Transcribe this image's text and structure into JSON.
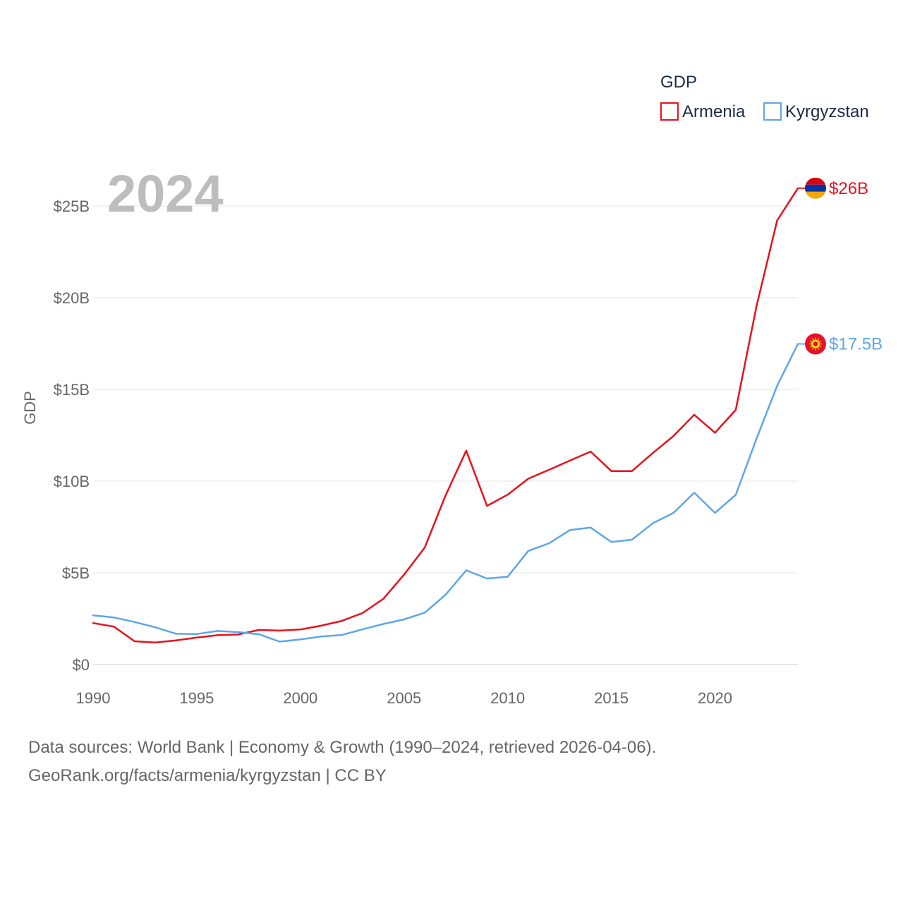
{
  "chart_data": {
    "type": "line",
    "year_label": "2024",
    "ylabel": "GDP",
    "xlim": [
      1990,
      2024
    ],
    "ylim": [
      0,
      27
    ],
    "x_ticks": [
      1990,
      1995,
      2000,
      2005,
      2010,
      2015,
      2020
    ],
    "y_ticks": [
      {
        "value": 0,
        "label": "$0"
      },
      {
        "value": 5,
        "label": "$5B"
      },
      {
        "value": 10,
        "label": "$10B"
      },
      {
        "value": 15,
        "label": "$15B"
      },
      {
        "value": 20,
        "label": "$20B"
      },
      {
        "value": 25,
        "label": "$25B"
      }
    ],
    "legend": {
      "title": "GDP",
      "placement": "top-right"
    },
    "x": [
      1990,
      1991,
      1992,
      1993,
      1994,
      1995,
      1996,
      1997,
      1998,
      1999,
      2000,
      2001,
      2002,
      2003,
      2004,
      2005,
      2006,
      2007,
      2008,
      2009,
      2010,
      2011,
      2012,
      2013,
      2014,
      2015,
      2016,
      2017,
      2018,
      2019,
      2020,
      2021,
      2022,
      2023,
      2024
    ],
    "series": [
      {
        "name": "Armenia",
        "color": "#e8111c",
        "end_label": "$26B",
        "flag": "armenia-flag-icon",
        "values": [
          2.26,
          2.07,
          1.27,
          1.2,
          1.32,
          1.47,
          1.6,
          1.64,
          1.89,
          1.85,
          1.91,
          2.12,
          2.38,
          2.81,
          3.58,
          4.9,
          6.38,
          9.21,
          11.66,
          8.65,
          9.26,
          10.14,
          10.62,
          11.12,
          11.61,
          10.55,
          10.55,
          11.53,
          12.46,
          13.62,
          12.64,
          13.88,
          19.51,
          24.21,
          25.97
        ]
      },
      {
        "name": "Kyrgyzstan",
        "color": "#5ea6e8",
        "end_label": "$17.5B",
        "flag": "kyrgyzstan-flag-icon",
        "values": [
          2.68,
          2.57,
          2.32,
          2.03,
          1.68,
          1.66,
          1.83,
          1.77,
          1.65,
          1.25,
          1.37,
          1.53,
          1.61,
          1.92,
          2.21,
          2.46,
          2.83,
          3.8,
          5.14,
          4.69,
          4.79,
          6.2,
          6.61,
          7.33,
          7.47,
          6.68,
          6.81,
          7.7,
          8.27,
          9.37,
          8.27,
          9.25,
          12.3,
          15.2,
          17.48
        ]
      }
    ]
  },
  "footer": {
    "line1": "Data sources: World Bank | Economy & Growth (1990–2024, retrieved 2026-04-06).",
    "line2": "GeoRank.org/facts/armenia/kyrgyzstan | CC BY"
  }
}
